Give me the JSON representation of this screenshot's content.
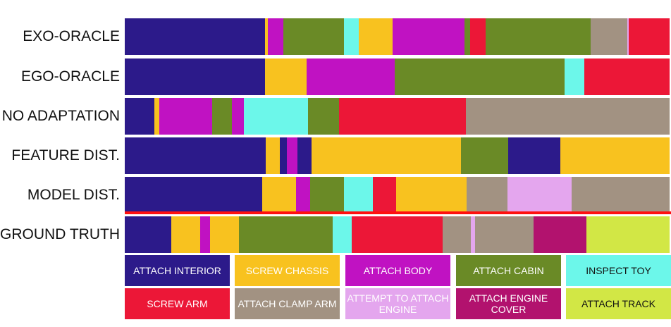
{
  "colors": {
    "attach_interior": "#2c1a8a",
    "screw_chassis": "#f8c21f",
    "attach_body": "#c012c2",
    "attach_cabin": "#6a8a26",
    "inspect_toy": "#6cf7ea",
    "screw_arm": "#ec1737",
    "attach_clamp_arm": "#a29282",
    "attempt_attach_engine": "#e4a6ee",
    "attach_engine_cover": "#b2126e",
    "attach_track": "#d2e745",
    "divider": "#ff1010"
  },
  "legend": [
    {
      "key": "attach_interior",
      "label": "ATTACH INTERIOR"
    },
    {
      "key": "screw_chassis",
      "label": "SCREW CHASSIS"
    },
    {
      "key": "attach_body",
      "label": "ATTACH BODY"
    },
    {
      "key": "attach_cabin",
      "label": "ATTACH CABIN"
    },
    {
      "key": "inspect_toy",
      "label": "INSPECT TOY"
    },
    {
      "key": "screw_arm",
      "label": "SCREW ARM"
    },
    {
      "key": "attach_clamp_arm",
      "label": "ATTACH CLAMP ARM"
    },
    {
      "key": "attempt_attach_engine",
      "label": "ATTEMPT TO ATTACH ENGINE"
    },
    {
      "key": "attach_engine_cover",
      "label": "ATTACH ENGINE COVER"
    },
    {
      "key": "attach_track",
      "label": "ATTACH TRACK"
    }
  ],
  "rows": [
    {
      "label": "EXO-ORACLE",
      "segments": [
        {
          "key": "attach_interior",
          "share": 0.258
        },
        {
          "key": "screw_chassis",
          "share": 0.004
        },
        {
          "key": "attach_body",
          "share": 0.029
        },
        {
          "key": "attach_cabin",
          "share": 0.111
        },
        {
          "key": "inspect_toy",
          "share": 0.027
        },
        {
          "key": "screw_chassis",
          "share": 0.062
        },
        {
          "key": "attach_body",
          "share": 0.132
        },
        {
          "key": "attach_cabin",
          "share": 0.011
        },
        {
          "key": "screw_arm",
          "share": 0.028
        },
        {
          "key": "attach_cabin",
          "share": 0.193
        },
        {
          "key": "attach_clamp_arm",
          "share": 0.067
        },
        {
          "key": "attempt_attach_engine",
          "share": 0.003
        },
        {
          "key": "screw_arm",
          "share": 0.075
        }
      ]
    },
    {
      "label": "EGO-ORACLE",
      "segments": [
        {
          "key": "attach_interior",
          "share": 0.258
        },
        {
          "key": "screw_chassis",
          "share": 0.076
        },
        {
          "key": "attach_body",
          "share": 0.162
        },
        {
          "key": "attach_cabin",
          "share": 0.311
        },
        {
          "key": "inspect_toy",
          "share": 0.036
        },
        {
          "key": "screw_arm",
          "share": 0.157
        }
      ]
    },
    {
      "label": "NO ADAPTATION",
      "segments": [
        {
          "key": "attach_interior",
          "share": 0.054
        },
        {
          "key": "screw_chassis",
          "share": 0.009
        },
        {
          "key": "attach_body",
          "share": 0.098
        },
        {
          "key": "attach_cabin",
          "share": 0.036
        },
        {
          "key": "attach_body",
          "share": 0.022
        },
        {
          "key": "inspect_toy",
          "share": 0.117
        },
        {
          "key": "attach_cabin",
          "share": 0.057
        },
        {
          "key": "screw_arm",
          "share": 0.233
        },
        {
          "key": "attach_clamp_arm",
          "share": 0.374
        }
      ]
    },
    {
      "label": "FEATURE DIST.",
      "segments": [
        {
          "key": "attach_interior",
          "share": 0.259
        },
        {
          "key": "screw_chassis",
          "share": 0.026
        },
        {
          "key": "attach_interior",
          "share": 0.013
        },
        {
          "key": "attach_body",
          "share": 0.019
        },
        {
          "key": "attach_interior",
          "share": 0.026
        },
        {
          "key": "screw_chassis",
          "share": 0.274
        },
        {
          "key": "attach_cabin",
          "share": 0.087
        },
        {
          "key": "attach_interior",
          "share": 0.096
        },
        {
          "key": "screw_chassis",
          "share": 0.2
        }
      ]
    },
    {
      "label": "MODEL DIST.",
      "segments": [
        {
          "key": "attach_interior",
          "share": 0.252
        },
        {
          "key": "screw_chassis",
          "share": 0.062
        },
        {
          "key": "attach_body",
          "share": 0.026
        },
        {
          "key": "attach_cabin",
          "share": 0.062
        },
        {
          "key": "inspect_toy",
          "share": 0.053
        },
        {
          "key": "screw_arm",
          "share": 0.043
        },
        {
          "key": "screw_chassis",
          "share": 0.129
        },
        {
          "key": "attach_clamp_arm",
          "share": 0.076
        },
        {
          "key": "attempt_attach_engine",
          "share": 0.117
        },
        {
          "key": "attach_clamp_arm",
          "share": 0.18
        }
      ]
    },
    {
      "label": "GROUND TRUTH",
      "segments": [
        {
          "key": "attach_interior",
          "share": 0.085
        },
        {
          "key": "screw_chassis",
          "share": 0.053
        },
        {
          "key": "attach_body",
          "share": 0.018
        },
        {
          "key": "screw_chassis",
          "share": 0.054
        },
        {
          "key": "attach_cabin",
          "share": 0.172
        },
        {
          "key": "inspect_toy",
          "share": 0.035
        },
        {
          "key": "screw_arm",
          "share": 0.166
        },
        {
          "key": "attach_clamp_arm",
          "share": 0.052
        },
        {
          "key": "attempt_attach_engine",
          "share": 0.008
        },
        {
          "key": "attach_clamp_arm",
          "share": 0.107
        },
        {
          "key": "attach_engine_cover",
          "share": 0.097
        },
        {
          "key": "attach_track",
          "share": 0.153
        }
      ]
    }
  ]
}
